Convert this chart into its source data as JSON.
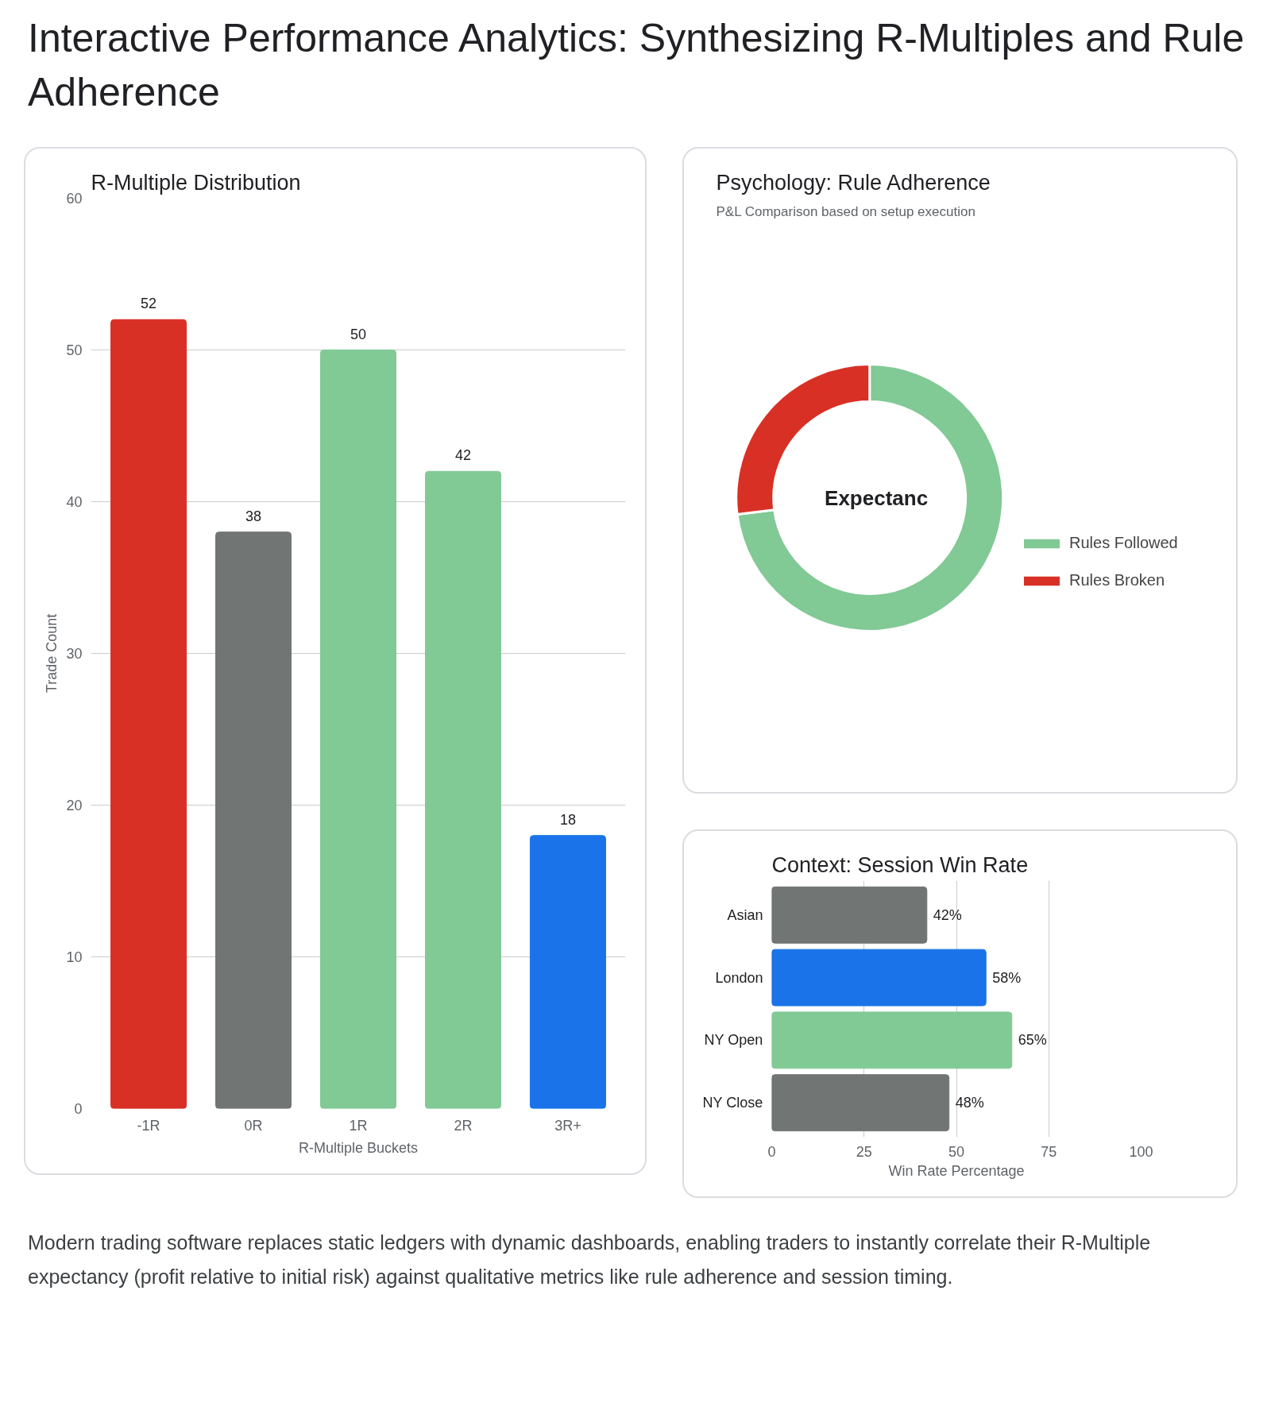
{
  "chart_data": [
    {
      "type": "other",
      "title": "Interactive Performance Analytics: Synthesizing R-Multiples and Rule Adherence",
      "annotations": [
        "Modern trading software replaces static ledgers with dynamic dashboards, enabling traders to instantly correlate their R-Multiple expectancy (profit relative to initial risk) against qualitative metrics like rule adherence and session timing."
      ]
    },
    {
      "type": "bar",
      "title": "R-Multiple Distribution",
      "xlabel": "R-Multiple Buckets",
      "ylabel": "Trade Count",
      "categories": [
        "-1R",
        "0R",
        "1R",
        "2R",
        "3R+"
      ],
      "values": [
        52,
        38,
        50,
        42,
        18
      ],
      "colors": [
        "#d93025",
        "#717574",
        "#81c995",
        "#81c995",
        "#1a73e8"
      ],
      "ylim": [
        0,
        60
      ],
      "yticks": [
        0,
        10,
        20,
        30,
        40,
        50,
        60
      ],
      "grid": "y",
      "data_labels": true
    },
    {
      "type": "donut",
      "title": "Psychology: Rule Adherence",
      "subtitle": "P&L Comparison based on setup execution",
      "categories": [
        "Rules Followed",
        "Rules Broken"
      ],
      "values": [
        73,
        27
      ],
      "colors": [
        "#81c995",
        "#d93025"
      ],
      "annotations": [
        "Expectanc"
      ],
      "legend": "right"
    },
    {
      "type": "bar",
      "orientation": "horizontal",
      "title": "Context: Session Win Rate",
      "xlabel": "Win Rate Percentage",
      "categories": [
        "Asian",
        "London",
        "NY Open",
        "NY Close"
      ],
      "values": [
        42,
        58,
        65,
        48
      ],
      "colors": [
        "#717574",
        "#1a73e8",
        "#81c995",
        "#717574"
      ],
      "value_labels": [
        "42%",
        "58%",
        "65%",
        "48%"
      ],
      "xlim": [
        0,
        100
      ],
      "xticks": [
        0,
        25,
        50,
        75,
        100
      ],
      "grid": "x"
    }
  ]
}
